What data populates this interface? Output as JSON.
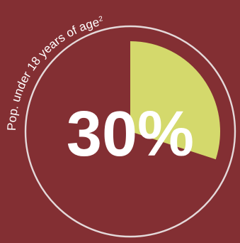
{
  "colors": {
    "background": "#832f33",
    "ring": "#e4d9da",
    "slice": "#d4d96c",
    "text": "#ffffff"
  },
  "chart_data": {
    "type": "pie",
    "title": "Pop. under 18 years of age",
    "title_footnote": "2",
    "slices": [
      {
        "value": 30
      }
    ],
    "total": 100,
    "center_label": "30%"
  }
}
